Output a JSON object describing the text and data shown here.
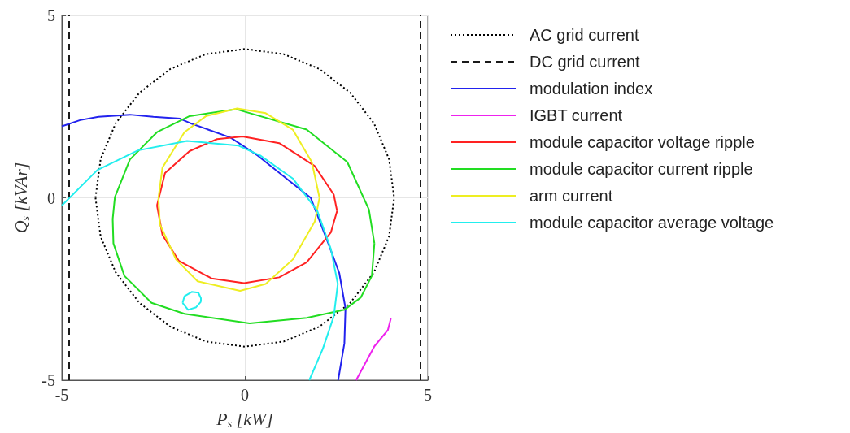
{
  "chart_data": {
    "type": "line",
    "xlabel": "P$_{s}$ [kW]",
    "ylabel": "Q$_{s}$ [kVAr]",
    "xlim": [
      -5,
      5
    ],
    "ylim": [
      -5,
      5
    ],
    "xticks": [
      -5,
      0,
      5
    ],
    "yticks": [
      -5,
      0,
      5
    ],
    "grid": true,
    "legend": "top right",
    "marker": "none",
    "series": [
      {
        "name": "AC grid current",
        "color": "#000000",
        "line_style": "dotted",
        "x": [
          -4.08,
          -3.94,
          -3.53,
          -2.88,
          -2.04,
          -1.06,
          0,
          1.06,
          2.04,
          2.88,
          3.53,
          3.94,
          4.08,
          null,
          -4.08,
          -3.94,
          -3.53,
          -2.88,
          -2.04,
          -1.06,
          0,
          1.06,
          2.04,
          2.88,
          3.53,
          3.94,
          4.08
        ],
        "values": [
          0,
          1.06,
          2.04,
          2.88,
          3.53,
          3.94,
          4.08,
          3.94,
          3.53,
          2.88,
          2.04,
          1.06,
          0,
          null,
          0,
          -1.06,
          -2.04,
          -2.88,
          -3.53,
          -3.94,
          -4.08,
          -3.94,
          -3.53,
          -2.88,
          -2.04,
          -1.06,
          0
        ]
      },
      {
        "name": "DC grid current",
        "color": "#1a1a1a",
        "line_style": "dashed",
        "x": [
          -4.8,
          -4.8,
          null,
          4.8,
          4.8
        ],
        "values": [
          -5,
          5,
          null,
          -5,
          5
        ]
      },
      {
        "name": "modulation index",
        "color": "#2222ee",
        "line_style": "solid",
        "x": [
          -5,
          -4.5,
          -4,
          -3.14,
          -2.5,
          -1.77,
          -1.5,
          -0.39,
          0.35,
          1.31,
          1.8,
          2.28,
          2.58,
          2.75,
          2.72,
          2.55
        ],
        "values": [
          1.96,
          2.13,
          2.22,
          2.28,
          2.22,
          2.17,
          2.05,
          1.65,
          1.16,
          0.39,
          0,
          -1.25,
          -2.06,
          -3.03,
          -3.99,
          -5
        ]
      },
      {
        "name": "IGBT current",
        "color": "#ee22ee",
        "line_style": "solid",
        "x": [
          3.04,
          3.54,
          3.91,
          3.99
        ],
        "values": [
          -5,
          -4.07,
          -3.62,
          -3.31
        ]
      },
      {
        "name": "module capacitor voltage ripple",
        "color": "#ff2222",
        "line_style": "solid",
        "x": [
          -2.4,
          -2.18,
          -1.51,
          -0.76,
          -0.06,
          0.94,
          1.91,
          2.43,
          2.52,
          null,
          -2.4,
          -2.25,
          -1.8,
          -0.91,
          -0.02,
          0.94,
          1.69,
          2.35,
          2.52
        ],
        "values": [
          -0.21,
          0.68,
          1.28,
          1.61,
          1.68,
          1.5,
          0.87,
          0.09,
          -0.36,
          null,
          -0.21,
          -1.02,
          -1.73,
          -2.21,
          -2.34,
          -2.18,
          -1.77,
          -0.95,
          -0.36
        ]
      },
      {
        "name": "module capacitor current ripple",
        "color": "#22dd22",
        "line_style": "solid",
        "x": [
          -3.61,
          -3.55,
          -3.14,
          -2.4,
          -1.51,
          -0.24,
          1.69,
          2.8,
          3.39,
          3.54,
          null,
          -3.61,
          -3.59,
          -3.29,
          -2.55,
          -1.65,
          0.13,
          1.69,
          2.72,
          3.17,
          3.47,
          3.54
        ],
        "values": [
          -0.58,
          0.02,
          1.05,
          1.8,
          2.24,
          2.43,
          1.87,
          0.98,
          -0.32,
          -1.25,
          null,
          -0.58,
          -1.25,
          -2.14,
          -2.88,
          -3.18,
          -3.44,
          -3.29,
          -3.07,
          -2.73,
          -2.14,
          -1.25
        ]
      },
      {
        "name": "arm current",
        "color": "#eeee22",
        "line_style": "solid",
        "x": [
          -2.36,
          -2.25,
          -1.65,
          -1.06,
          -0.21,
          0.57,
          1.31,
          1.83,
          2.04,
          null,
          -2.36,
          -2.32,
          -1.88,
          -1.29,
          -0.13,
          0.57,
          1.31,
          1.91,
          2.04
        ],
        "values": [
          0,
          0.83,
          1.8,
          2.24,
          2.45,
          2.32,
          1.87,
          0.98,
          0,
          null,
          0,
          -0.73,
          -1.69,
          -2.29,
          -2.55,
          -2.36,
          -1.69,
          -0.65,
          0
        ]
      },
      {
        "name": "module capacitor average voltage",
        "color": "#22eeee",
        "line_style": "solid",
        "x": [
          -5,
          -4.03,
          -2.92,
          -1.58,
          -0.17,
          0.42,
          1.31,
          1.98,
          2.35,
          2.54,
          2.43,
          2.13,
          1.76,
          null,
          -1.7,
          -1.65,
          -1.45,
          -1.27,
          -1.2,
          -1.2,
          null,
          -1.7,
          -1.55,
          -1.33,
          -1.2
        ],
        "values": [
          -0.21,
          0.76,
          1.3,
          1.56,
          1.43,
          1.16,
          0.53,
          -0.36,
          -1.4,
          -2.36,
          -3.25,
          -4.14,
          -5,
          null,
          -2.88,
          -2.7,
          -2.58,
          -2.6,
          -2.75,
          -2.85,
          null,
          -2.88,
          -3.07,
          -3,
          -2.85
        ]
      }
    ]
  }
}
